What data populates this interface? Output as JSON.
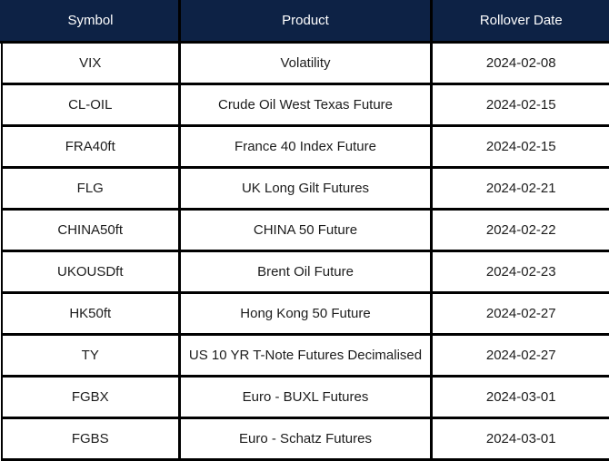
{
  "theme": {
    "header_bg": "#0d2245",
    "header_text": "#ffffff",
    "border": "#000000",
    "row_bg": "#ffffff",
    "row_text": "#1c1c1c"
  },
  "table": {
    "columns": [
      {
        "label": "Symbol"
      },
      {
        "label": "Product"
      },
      {
        "label": "Rollover Date"
      }
    ],
    "rows": [
      {
        "symbol": "VIX",
        "product": "Volatility",
        "rollover_date": "2024-02-08"
      },
      {
        "symbol": "CL-OIL",
        "product": "Crude Oil West Texas Future",
        "rollover_date": "2024-02-15"
      },
      {
        "symbol": "FRA40ft",
        "product": "France 40 Index Future",
        "rollover_date": "2024-02-15"
      },
      {
        "symbol": "FLG",
        "product": "UK Long Gilt Futures",
        "rollover_date": "2024-02-21"
      },
      {
        "symbol": "CHINA50ft",
        "product": "CHINA 50 Future",
        "rollover_date": "2024-02-22"
      },
      {
        "symbol": "UKOUSDft",
        "product": "Brent Oil Future",
        "rollover_date": "2024-02-23"
      },
      {
        "symbol": "HK50ft",
        "product": "Hong Kong 50 Future",
        "rollover_date": "2024-02-27"
      },
      {
        "symbol": "TY",
        "product": "US 10 YR T-Note Futures Decimalised",
        "rollover_date": "2024-02-27"
      },
      {
        "symbol": "FGBX",
        "product": "Euro - BUXL Futures",
        "rollover_date": "2024-03-01"
      },
      {
        "symbol": "FGBS",
        "product": "Euro - Schatz Futures",
        "rollover_date": "2024-03-01"
      }
    ]
  }
}
